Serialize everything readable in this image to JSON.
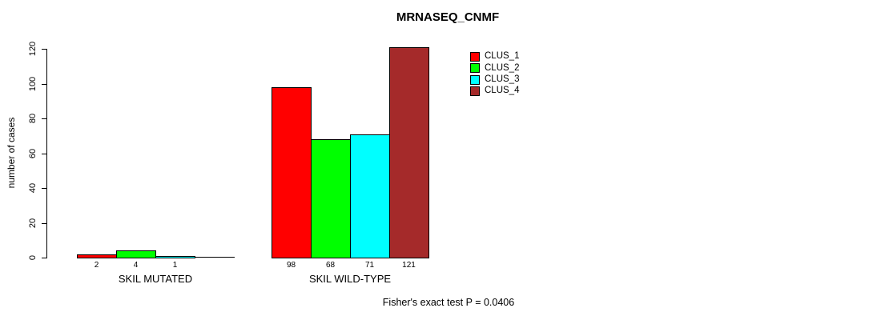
{
  "chart_data": {
    "type": "bar",
    "title": "MRNASEQ_CNMF",
    "ylabel": "number of cases",
    "xlabel": "",
    "ylim": [
      0,
      120
    ],
    "yticks": [
      0,
      20,
      40,
      60,
      80,
      100,
      120
    ],
    "grid": false,
    "legend_position": "top-right",
    "categories": [
      "SKIL MUTATED",
      "SKIL WILD-TYPE"
    ],
    "series": [
      {
        "name": "CLUS_1",
        "color": "#ff0000",
        "values": [
          2,
          98
        ]
      },
      {
        "name": "CLUS_2",
        "color": "#00ff00",
        "values": [
          4,
          68
        ]
      },
      {
        "name": "CLUS_3",
        "color": "#00ffff",
        "values": [
          1,
          71
        ]
      },
      {
        "name": "CLUS_4",
        "color": "#a52a2a",
        "values": [
          0,
          121
        ]
      }
    ],
    "bar_value_labels": [
      [
        "2",
        "4",
        "1",
        ""
      ],
      [
        "98",
        "68",
        "71",
        "121"
      ]
    ],
    "footer": "Fisher's exact test P = 0.0406"
  }
}
